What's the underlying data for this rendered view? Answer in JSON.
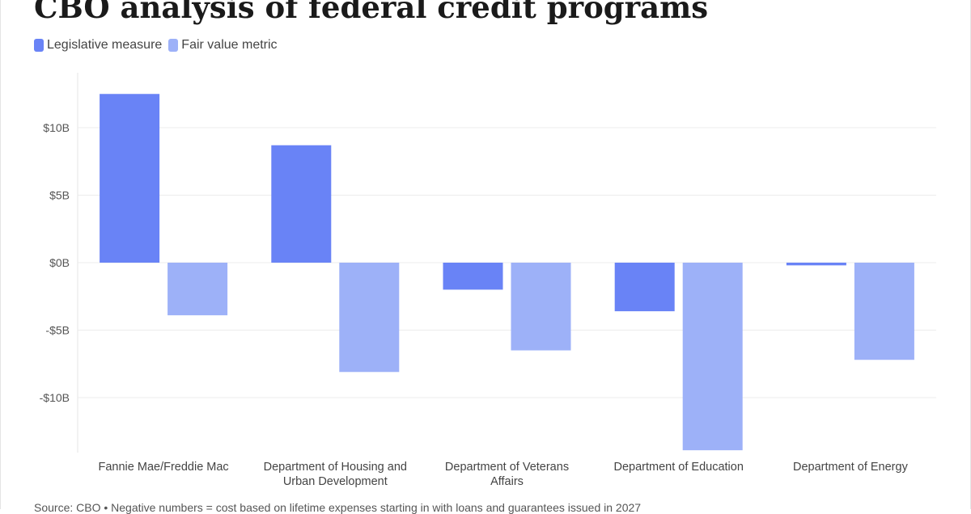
{
  "title": "CBO analysis of federal credit programs",
  "colors": {
    "legislative": "#6983f6",
    "fair_value": "#9db1f8"
  },
  "legend": [
    {
      "label": "Legislative measure",
      "color": "#6983f6"
    },
    {
      "label": "Fair value metric",
      "color": "#9db1f8"
    }
  ],
  "source": "Source: CBO • Negative numbers = cost based on lifetime expenses starting in with loans and guarantees issued in 2027",
  "chart_data": {
    "type": "bar",
    "categories": [
      [
        "Fannie Mae/Freddie Mac"
      ],
      [
        "Department of Housing and",
        "Urban Development"
      ],
      [
        "Department of Veterans",
        "Affairs"
      ],
      [
        "Department of Education"
      ],
      [
        "Department of Energy"
      ]
    ],
    "series": [
      {
        "name": "Legislative measure",
        "values": [
          12.5,
          8.7,
          -2.0,
          -3.6,
          -0.2
        ]
      },
      {
        "name": "Fair value metric",
        "values": [
          -3.9,
          -8.1,
          -6.5,
          -13.9,
          -7.2
        ]
      }
    ],
    "y_ticks": [
      10,
      5,
      0,
      -5,
      -10
    ],
    "y_tick_labels": [
      "$10B",
      "$5B",
      "$0B",
      "-$5B",
      "-$10B"
    ],
    "ylim": [
      -14,
      14
    ],
    "grid": true,
    "legend_position": "top-left"
  }
}
